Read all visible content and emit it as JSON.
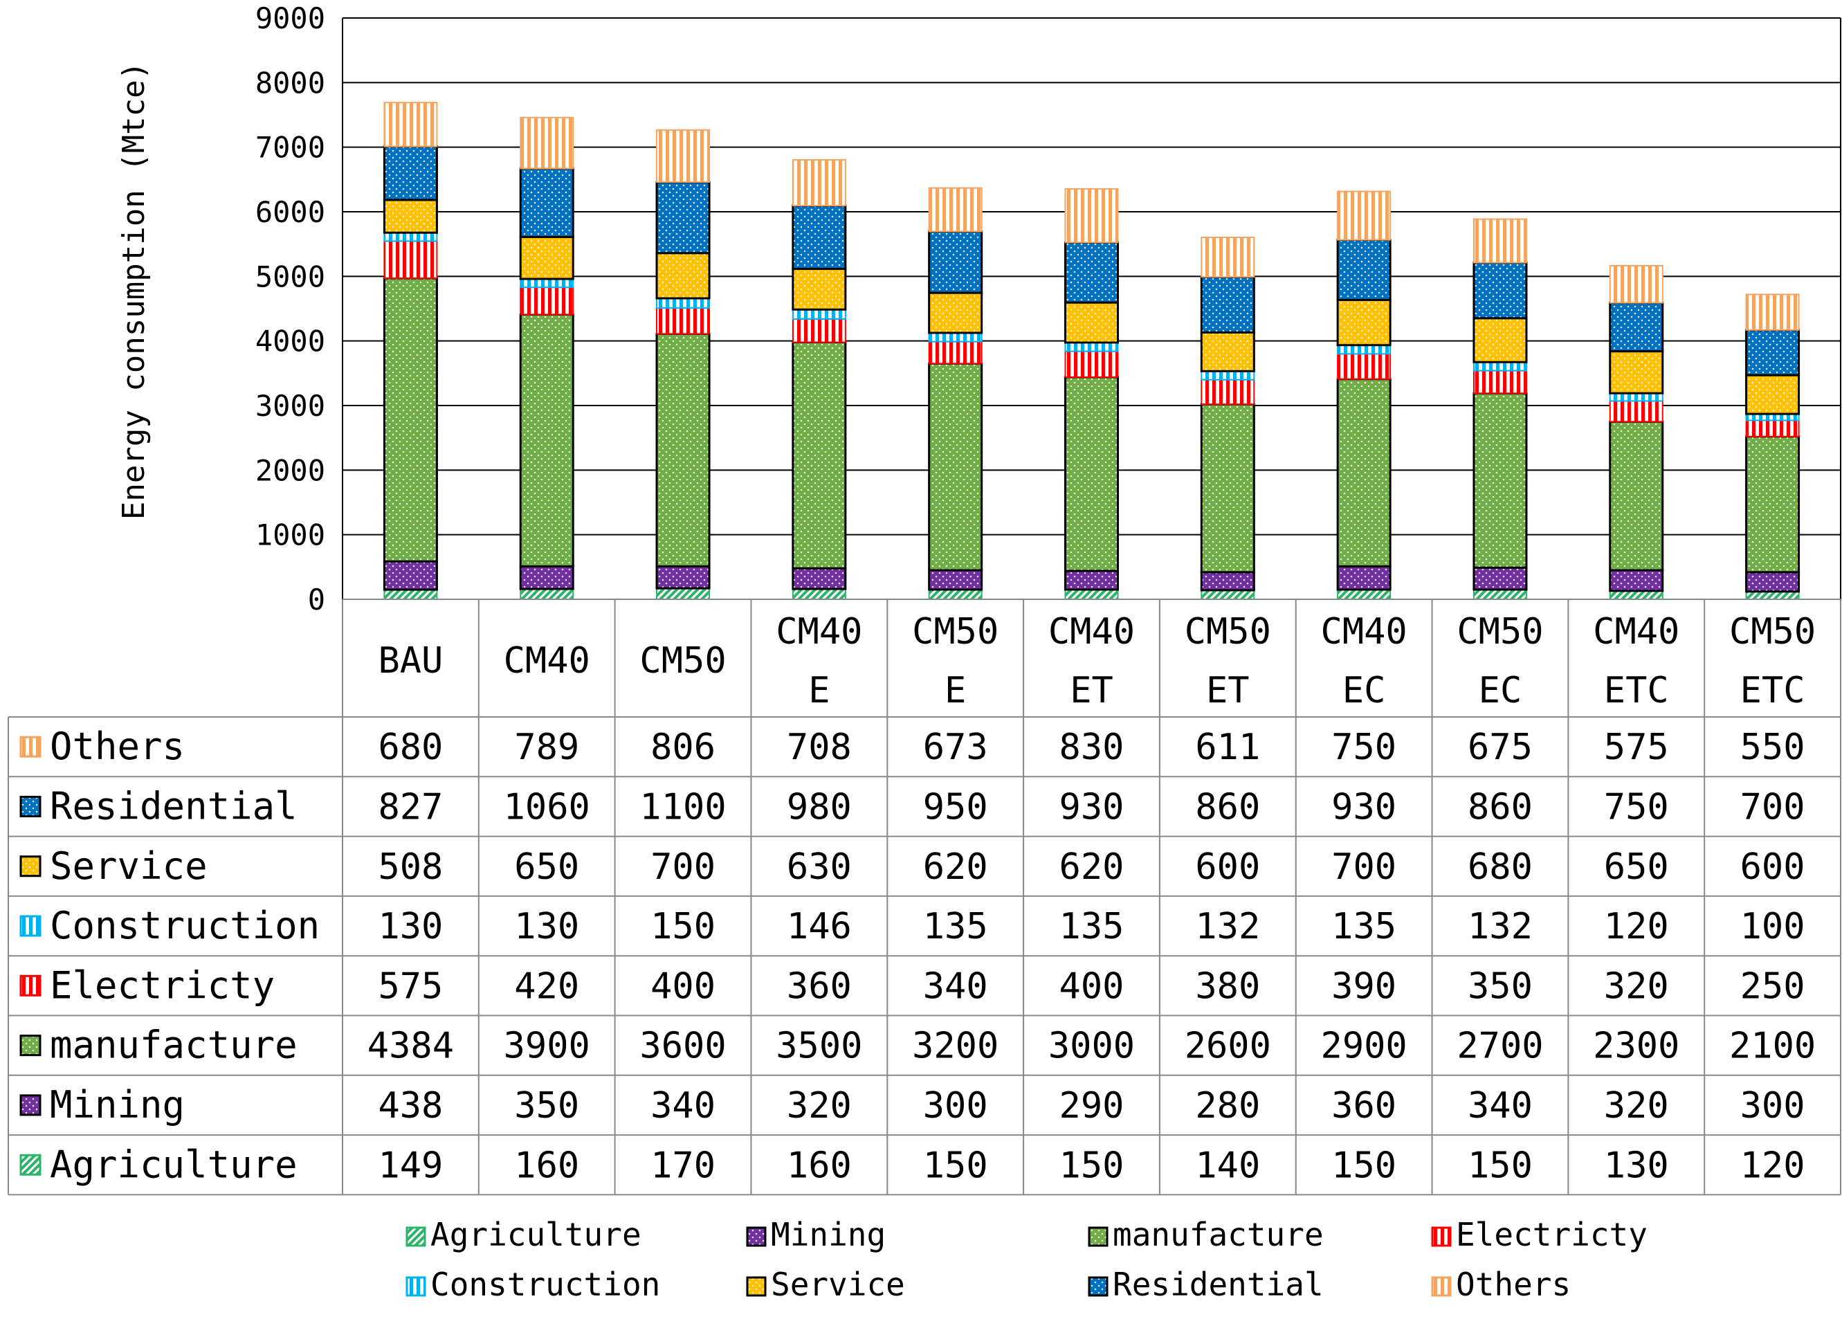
{
  "chart_data": {
    "type": "bar",
    "stacked": true,
    "title": "",
    "xlabel": "",
    "ylabel": "Energy consumption (Mtce)",
    "ylim": [
      0,
      9000
    ],
    "yticks": [
      0,
      1000,
      2000,
      3000,
      4000,
      5000,
      6000,
      7000,
      8000,
      9000
    ],
    "grid": true,
    "legend_position": "bottom",
    "categories": [
      [
        "BAU"
      ],
      [
        "CM40"
      ],
      [
        "CM50"
      ],
      [
        "CM40",
        "E"
      ],
      [
        "CM50",
        "E"
      ],
      [
        "CM40",
        "ET"
      ],
      [
        "CM50",
        "ET"
      ],
      [
        "CM40",
        "EC"
      ],
      [
        "CM50",
        "EC"
      ],
      [
        "CM40",
        "ETC"
      ],
      [
        "CM50",
        "ETC"
      ]
    ],
    "series": [
      {
        "name": "Agriculture",
        "color": "#2db36a",
        "pattern": "diag",
        "values": [
          149,
          160,
          170,
          160,
          150,
          150,
          140,
          150,
          150,
          130,
          120
        ]
      },
      {
        "name": "Mining",
        "color": "#7030a0",
        "pattern": "dots",
        "values": [
          438,
          350,
          340,
          320,
          300,
          290,
          280,
          360,
          340,
          320,
          300
        ]
      },
      {
        "name": "manufacture",
        "color": "#70ad47",
        "pattern": "dots",
        "values": [
          4384,
          3900,
          3600,
          3500,
          3200,
          3000,
          2600,
          2900,
          2700,
          2300,
          2100
        ]
      },
      {
        "name": "Electricty",
        "color": "#ff0000",
        "pattern": "vlines",
        "values": [
          575,
          420,
          400,
          360,
          340,
          400,
          380,
          390,
          350,
          320,
          250
        ]
      },
      {
        "name": "Construction",
        "color": "#00b0f0",
        "pattern": "vlines",
        "values": [
          130,
          130,
          150,
          146,
          135,
          135,
          132,
          135,
          132,
          120,
          100
        ]
      },
      {
        "name": "Service",
        "color": "#ffc000",
        "pattern": "dots",
        "values": [
          508,
          650,
          700,
          630,
          620,
          620,
          600,
          700,
          680,
          650,
          600
        ]
      },
      {
        "name": "Residential",
        "color": "#0070c0",
        "pattern": "dots",
        "values": [
          827,
          1060,
          1100,
          980,
          950,
          930,
          860,
          930,
          860,
          750,
          700
        ]
      },
      {
        "name": "Others",
        "color": "#f4a460",
        "pattern": "vlines",
        "values": [
          680,
          789,
          806,
          708,
          673,
          830,
          611,
          750,
          675,
          575,
          550
        ]
      }
    ]
  }
}
